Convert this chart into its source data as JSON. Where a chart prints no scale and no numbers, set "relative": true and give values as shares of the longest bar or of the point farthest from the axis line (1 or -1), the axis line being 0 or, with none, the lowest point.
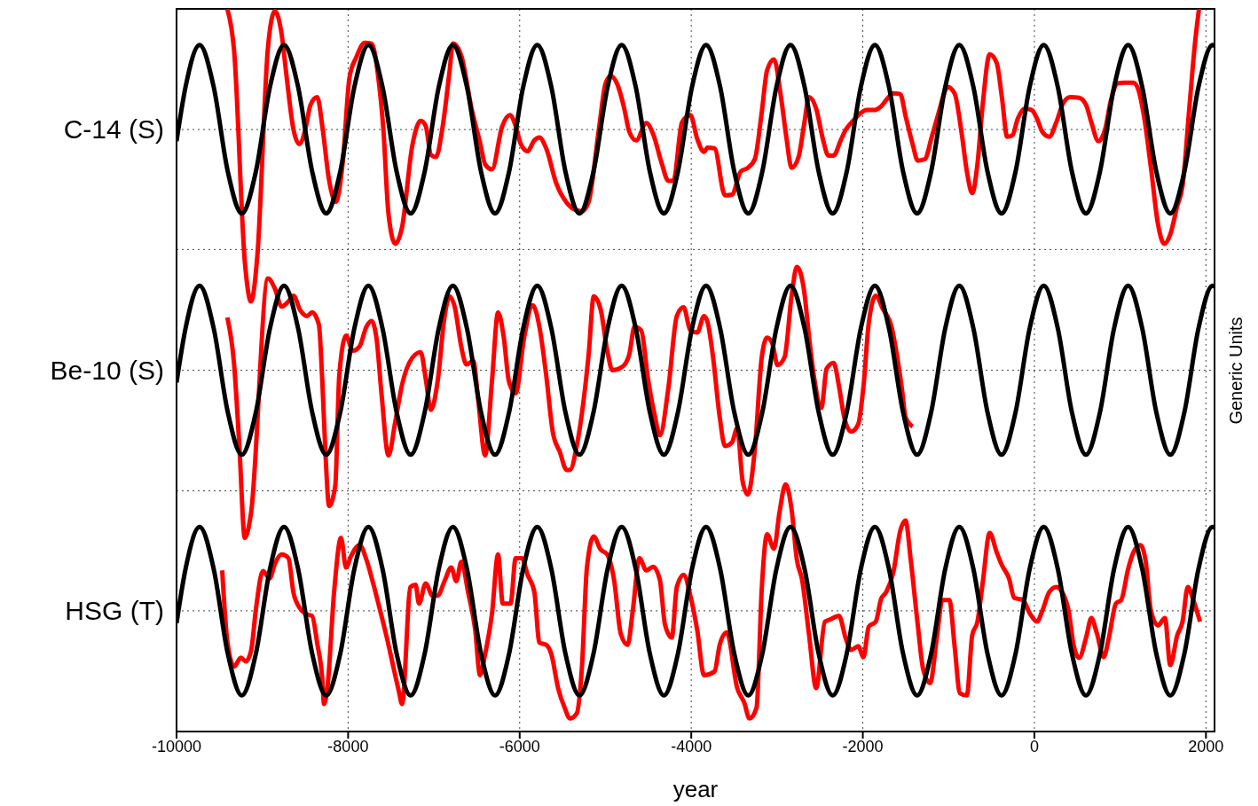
{
  "chart_data": {
    "type": "line",
    "xlabel": "year",
    "y2label": "Generic Units",
    "relative": true,
    "xlim": [
      -10000,
      2100
    ],
    "xticks": [
      -10000,
      -8000,
      -6000,
      -4000,
      -2000,
      0,
      2000
    ],
    "grid": "x",
    "ref_lines": [
      {
        "axis": "y",
        "value": 0.833,
        "label": "C-14 (S)",
        "color": "#444444",
        "line_style": "dotted"
      },
      {
        "axis": "y",
        "value": 0.667,
        "color": "#444444",
        "line_style": "dotted"
      },
      {
        "axis": "y",
        "value": 0.5,
        "label": "Be-10 (S)",
        "color": "#444444",
        "line_style": "dotted"
      },
      {
        "axis": "y",
        "value": 0.333,
        "color": "#444444",
        "line_style": "dotted"
      },
      {
        "axis": "y",
        "value": 0.167,
        "label": "HSG (T)",
        "color": "#444444",
        "line_style": "dotted"
      }
    ],
    "x": [
      -10000,
      -9895,
      -9731,
      -9567,
      -9403,
      -9239,
      -9075,
      -8911,
      -8747,
      -8583,
      -8419,
      -8255,
      -8091,
      -7927,
      -7763,
      -7599,
      -7435,
      -7271,
      -7107,
      -6943,
      -6779,
      -6615,
      -6451,
      -6287,
      -6123,
      -5959,
      -5795,
      -5631,
      -5467,
      -5303,
      -5139,
      -4975,
      -4811,
      -4647,
      -4483,
      -4319,
      -4155,
      -3991,
      -3827,
      -3663,
      -3499,
      -3335,
      -3171,
      -3007,
      -2843,
      -2679,
      -2515,
      -2351,
      -2187,
      -2023,
      -1859,
      -1695,
      -1531,
      -1367,
      -1203,
      -1039,
      -875,
      -711,
      -547,
      -383,
      -219,
      -55,
      109,
      273,
      437,
      601,
      765,
      929,
      1093,
      1257,
      1421,
      1585,
      1749,
      1913,
      2077,
      2100
    ],
    "series": [
      {
        "color": "#ff0000",
        "x": [
          -9408,
          -9329,
          -9204,
          -9132,
          -9059,
          -8934,
          -8854,
          -8775,
          -8716,
          -8637,
          -8570,
          -8499,
          -8439,
          -8360,
          -8301,
          -8222,
          -8143,
          -8063,
          -7984,
          -7905,
          -7807,
          -7727,
          -7648,
          -7589,
          -7530,
          -7451,
          -7371,
          -7253,
          -7154,
          -7095,
          -7035,
          -6976,
          -6897,
          -6818,
          -6778,
          -6680,
          -6561,
          -6462,
          -6403,
          -6323,
          -6205,
          -6114,
          -6047,
          -5987,
          -5908,
          -5829,
          -5770,
          -5691,
          -5572,
          -5453,
          -5354,
          -5275,
          -5196,
          -5077,
          -4998,
          -4939,
          -4860,
          -4781,
          -4722,
          -4642,
          -4524,
          -4445,
          -4346,
          -4267,
          -4208,
          -4108,
          -4010,
          -3930,
          -3851,
          -3811,
          -3729,
          -3607,
          -3525,
          -3423,
          -3341,
          -3259,
          -3178,
          -3116,
          -3035,
          -2953,
          -2892,
          -2830,
          -2749,
          -2687,
          -2626,
          -2544,
          -2462,
          -2401,
          -2340,
          -2258,
          -2197,
          -2115,
          -2033,
          -1952,
          -1870,
          -1788,
          -1706,
          -1645,
          -1563,
          -1502,
          -1420,
          -1359,
          -1277,
          -1196,
          -1114,
          -1052,
          -1012,
          -930,
          -848,
          -787,
          -725,
          -664,
          -603,
          -521,
          -439,
          -378,
          -317,
          -256,
          -194,
          -113,
          -31,
          31,
          92,
          174,
          255,
          337,
          419,
          521,
          603,
          664,
          746,
          828,
          889,
          971,
          1052,
          1155,
          1216,
          1277,
          1359,
          1441,
          1514,
          1584,
          1665,
          1727,
          1809,
          1870,
          1919
        ],
        "values": [
          1.0,
          0.942,
          0.65,
          0.595,
          0.657,
          0.947,
          0.997,
          0.965,
          0.905,
          0.833,
          0.813,
          0.833,
          0.867,
          0.878,
          0.838,
          0.763,
          0.733,
          0.787,
          0.905,
          0.933,
          0.953,
          0.952,
          0.905,
          0.833,
          0.717,
          0.675,
          0.698,
          0.81,
          0.845,
          0.838,
          0.798,
          0.795,
          0.838,
          0.913,
          0.952,
          0.935,
          0.862,
          0.815,
          0.785,
          0.778,
          0.837,
          0.853,
          0.838,
          0.813,
          0.803,
          0.818,
          0.822,
          0.807,
          0.758,
          0.732,
          0.722,
          0.72,
          0.733,
          0.833,
          0.897,
          0.907,
          0.895,
          0.862,
          0.83,
          0.818,
          0.842,
          0.827,
          0.787,
          0.762,
          0.762,
          0.843,
          0.853,
          0.82,
          0.802,
          0.808,
          0.807,
          0.742,
          0.743,
          0.775,
          0.78,
          0.792,
          0.857,
          0.915,
          0.93,
          0.877,
          0.823,
          0.78,
          0.795,
          0.838,
          0.878,
          0.862,
          0.818,
          0.797,
          0.797,
          0.818,
          0.833,
          0.845,
          0.855,
          0.86,
          0.86,
          0.865,
          0.877,
          0.883,
          0.882,
          0.852,
          0.813,
          0.79,
          0.792,
          0.823,
          0.857,
          0.883,
          0.892,
          0.883,
          0.828,
          0.775,
          0.745,
          0.785,
          0.867,
          0.937,
          0.925,
          0.877,
          0.823,
          0.825,
          0.848,
          0.862,
          0.86,
          0.848,
          0.83,
          0.823,
          0.843,
          0.87,
          0.878,
          0.877,
          0.867,
          0.843,
          0.817,
          0.835,
          0.872,
          0.897,
          0.898,
          0.898,
          0.887,
          0.852,
          0.78,
          0.702,
          0.675,
          0.688,
          0.727,
          0.755,
          0.867,
          0.95,
          1.0
        ]
      },
      {
        "color": "#ff0000",
        "x": [
          -9408,
          -9329,
          -9270,
          -9204,
          -9132,
          -8934,
          -8854,
          -8775,
          -8696,
          -8637,
          -8558,
          -8479,
          -8420,
          -8341,
          -8301,
          -8261,
          -8222,
          -8150,
          -8103,
          -8024,
          -7945,
          -7866,
          -7787,
          -7727,
          -7668,
          -7609,
          -7530,
          -7451,
          -7371,
          -7253,
          -7154,
          -7095,
          -7035,
          -6956,
          -6877,
          -6818,
          -6758,
          -6680,
          -6620,
          -6541,
          -6482,
          -6403,
          -6323,
          -6252,
          -6185,
          -6126,
          -6047,
          -5948,
          -5849,
          -5770,
          -5691,
          -5612,
          -5532,
          -5453,
          -5414,
          -5335,
          -5256,
          -5196,
          -5137,
          -5058,
          -4979,
          -4919,
          -4801,
          -4722,
          -4662,
          -4583,
          -4504,
          -4425,
          -4366,
          -4267,
          -4168,
          -4089,
          -4010,
          -3930,
          -3851,
          -3811,
          -3750,
          -3668,
          -3607,
          -3525,
          -3464,
          -3402,
          -3341,
          -3259,
          -3178,
          -3116,
          -3055,
          -2994,
          -2912,
          -2830,
          -2769,
          -2687,
          -2626,
          -2565,
          -2483,
          -2422,
          -2340,
          -2278,
          -2217,
          -2135,
          -2054,
          -1992,
          -1931,
          -1849,
          -1768,
          -1665,
          -1604,
          -1543,
          -1502,
          -1420
        ],
        "values": [
          0.573,
          0.508,
          0.4,
          0.268,
          0.302,
          0.627,
          0.613,
          0.588,
          0.595,
          0.603,
          0.583,
          0.575,
          0.58,
          0.563,
          0.485,
          0.377,
          0.312,
          0.34,
          0.493,
          0.548,
          0.527,
          0.533,
          0.56,
          0.568,
          0.543,
          0.465,
          0.382,
          0.428,
          0.48,
          0.517,
          0.525,
          0.488,
          0.445,
          0.485,
          0.573,
          0.602,
          0.588,
          0.532,
          0.508,
          0.513,
          0.457,
          0.382,
          0.485,
          0.58,
          0.545,
          0.485,
          0.468,
          0.545,
          0.59,
          0.56,
          0.493,
          0.413,
          0.387,
          0.362,
          0.362,
          0.395,
          0.457,
          0.522,
          0.602,
          0.585,
          0.527,
          0.5,
          0.505,
          0.522,
          0.56,
          0.555,
          0.488,
          0.437,
          0.41,
          0.475,
          0.575,
          0.587,
          0.555,
          0.552,
          0.575,
          0.567,
          0.522,
          0.435,
          0.395,
          0.4,
          0.42,
          0.347,
          0.328,
          0.39,
          0.518,
          0.545,
          0.537,
          0.507,
          0.518,
          0.603,
          0.643,
          0.612,
          0.545,
          0.488,
          0.448,
          0.502,
          0.51,
          0.478,
          0.435,
          0.415,
          0.425,
          0.478,
          0.565,
          0.603,
          0.585,
          0.56,
          0.522,
          0.473,
          0.435,
          0.422
        ]
      },
      {
        "color": "#ff0000",
        "x": [
          -9468,
          -9408,
          -9329,
          -9250,
          -9191,
          -9131,
          -9072,
          -8993,
          -8914,
          -8854,
          -8775,
          -8696,
          -8637,
          -8558,
          -8499,
          -8420,
          -8360,
          -8301,
          -8281,
          -8242,
          -8162,
          -8083,
          -8024,
          -7965,
          -7866,
          -7787,
          -7708,
          -7628,
          -7549,
          -7470,
          -7411,
          -7371,
          -7273,
          -7213,
          -7174,
          -7095,
          -7016,
          -6956,
          -6877,
          -6798,
          -6739,
          -6680,
          -6600,
          -6521,
          -6462,
          -6403,
          -6323,
          -6252,
          -6197,
          -6106,
          -6047,
          -5975,
          -5908,
          -5829,
          -5770,
          -5691,
          -5631,
          -5552,
          -5473,
          -5414,
          -5335,
          -5275,
          -5216,
          -5137,
          -5058,
          -4979,
          -4900,
          -4821,
          -4741,
          -4682,
          -4603,
          -4524,
          -4445,
          -4366,
          -4306,
          -4227,
          -4168,
          -4089,
          -4010,
          -3930,
          -3851,
          -3729,
          -3668,
          -3586,
          -3464,
          -3382,
          -3321,
          -3239,
          -3178,
          -3116,
          -3035,
          -2973,
          -2900,
          -2830,
          -2769,
          -2708,
          -2626,
          -2544,
          -2442,
          -2381,
          -2278,
          -2197,
          -2135,
          -2054,
          -1992,
          -1931,
          -1849,
          -1788,
          -1727,
          -1645,
          -1563,
          -1502,
          -1441,
          -1359,
          -1298,
          -1216,
          -1134,
          -1073,
          -991,
          -930,
          -868,
          -787,
          -725,
          -664,
          -603,
          -521,
          -439,
          -378,
          -296,
          -235,
          -133,
          -51,
          31,
          92,
          174,
          255,
          337,
          399,
          460,
          521,
          603,
          664,
          726,
          807,
          869,
          950,
          1012,
          1093,
          1155,
          1236,
          1298,
          1359,
          1441,
          1522,
          1584,
          1665,
          1727,
          1788,
          1850,
          1931
        ],
        "values": [
          0.223,
          0.125,
          0.09,
          0.102,
          0.097,
          0.112,
          0.172,
          0.222,
          0.212,
          0.232,
          0.245,
          0.24,
          0.192,
          0.17,
          0.163,
          0.16,
          0.122,
          0.073,
          0.038,
          0.06,
          0.195,
          0.268,
          0.227,
          0.243,
          0.258,
          0.238,
          0.205,
          0.168,
          0.13,
          0.088,
          0.057,
          0.038,
          0.2,
          0.203,
          0.177,
          0.205,
          0.188,
          0.188,
          0.208,
          0.227,
          0.208,
          0.235,
          0.192,
          0.143,
          0.078,
          0.107,
          0.163,
          0.245,
          0.177,
          0.177,
          0.24,
          0.24,
          0.217,
          0.193,
          0.123,
          0.12,
          0.107,
          0.06,
          0.032,
          0.018,
          0.025,
          0.088,
          0.227,
          0.27,
          0.252,
          0.245,
          0.21,
          0.135,
          0.12,
          0.167,
          0.24,
          0.223,
          0.228,
          0.21,
          0.148,
          0.13,
          0.2,
          0.217,
          0.188,
          0.14,
          0.078,
          0.083,
          0.12,
          0.137,
          0.06,
          0.04,
          0.018,
          0.033,
          0.198,
          0.273,
          0.253,
          0.302,
          0.342,
          0.307,
          0.238,
          0.21,
          0.133,
          0.06,
          0.152,
          0.155,
          0.16,
          0.128,
          0.113,
          0.118,
          0.103,
          0.145,
          0.152,
          0.183,
          0.193,
          0.22,
          0.278,
          0.292,
          0.237,
          0.147,
          0.087,
          0.067,
          0.133,
          0.182,
          0.182,
          0.118,
          0.053,
          0.05,
          0.133,
          0.152,
          0.205,
          0.275,
          0.248,
          0.23,
          0.212,
          0.185,
          0.182,
          0.163,
          0.152,
          0.167,
          0.193,
          0.2,
          0.19,
          0.167,
          0.118,
          0.102,
          0.13,
          0.157,
          0.137,
          0.103,
          0.13,
          0.177,
          0.182,
          0.225,
          0.248,
          0.258,
          0.235,
          0.167,
          0.147,
          0.157,
          0.092,
          0.133,
          0.152,
          0.2,
          0.183,
          0.152
        ]
      },
      {
        "color": "#000000",
        "values": [
          0.817,
          0.892,
          0.95,
          0.892,
          0.775,
          0.717,
          0.775,
          0.892,
          0.95,
          0.892,
          0.775,
          0.717,
          0.775,
          0.892,
          0.95,
          0.892,
          0.775,
          0.717,
          0.775,
          0.892,
          0.95,
          0.892,
          0.775,
          0.717,
          0.775,
          0.892,
          0.95,
          0.892,
          0.775,
          0.717,
          0.775,
          0.892,
          0.95,
          0.892,
          0.775,
          0.717,
          0.775,
          0.892,
          0.95,
          0.892,
          0.775,
          0.717,
          0.775,
          0.892,
          0.95,
          0.892,
          0.775,
          0.717,
          0.775,
          0.892,
          0.95,
          0.892,
          0.775,
          0.717,
          0.775,
          0.892,
          0.95,
          0.892,
          0.775,
          0.717,
          0.775,
          0.892,
          0.95,
          0.892,
          0.775,
          0.717,
          0.775,
          0.892,
          0.95,
          0.892,
          0.775,
          0.717,
          0.775,
          0.892,
          0.95,
          0.948
        ]
      },
      {
        "color": "#000000",
        "values": [
          0.483,
          0.558,
          0.617,
          0.558,
          0.442,
          0.383,
          0.442,
          0.558,
          0.617,
          0.558,
          0.442,
          0.383,
          0.442,
          0.558,
          0.617,
          0.558,
          0.442,
          0.383,
          0.442,
          0.558,
          0.617,
          0.558,
          0.442,
          0.383,
          0.442,
          0.558,
          0.617,
          0.558,
          0.442,
          0.383,
          0.442,
          0.558,
          0.617,
          0.558,
          0.442,
          0.383,
          0.442,
          0.558,
          0.617,
          0.558,
          0.442,
          0.383,
          0.442,
          0.558,
          0.617,
          0.558,
          0.442,
          0.383,
          0.442,
          0.558,
          0.617,
          0.558,
          0.442,
          0.383,
          0.442,
          0.558,
          0.617,
          0.558,
          0.442,
          0.383,
          0.442,
          0.558,
          0.617,
          0.558,
          0.442,
          0.383,
          0.442,
          0.558,
          0.617,
          0.558,
          0.442,
          0.383,
          0.442,
          0.558,
          0.617,
          0.615
        ]
      },
      {
        "color": "#000000",
        "values": [
          0.15,
          0.225,
          0.283,
          0.225,
          0.108,
          0.05,
          0.108,
          0.225,
          0.283,
          0.225,
          0.108,
          0.05,
          0.108,
          0.225,
          0.283,
          0.225,
          0.108,
          0.05,
          0.108,
          0.225,
          0.283,
          0.225,
          0.108,
          0.05,
          0.108,
          0.225,
          0.283,
          0.225,
          0.108,
          0.05,
          0.108,
          0.225,
          0.283,
          0.225,
          0.108,
          0.05,
          0.108,
          0.225,
          0.283,
          0.225,
          0.108,
          0.05,
          0.108,
          0.225,
          0.283,
          0.225,
          0.108,
          0.05,
          0.108,
          0.225,
          0.283,
          0.225,
          0.108,
          0.05,
          0.108,
          0.225,
          0.283,
          0.225,
          0.108,
          0.05,
          0.108,
          0.225,
          0.283,
          0.225,
          0.108,
          0.05,
          0.108,
          0.225,
          0.283,
          0.225,
          0.108,
          0.05,
          0.108,
          0.225,
          0.283,
          0.282
        ]
      }
    ]
  }
}
